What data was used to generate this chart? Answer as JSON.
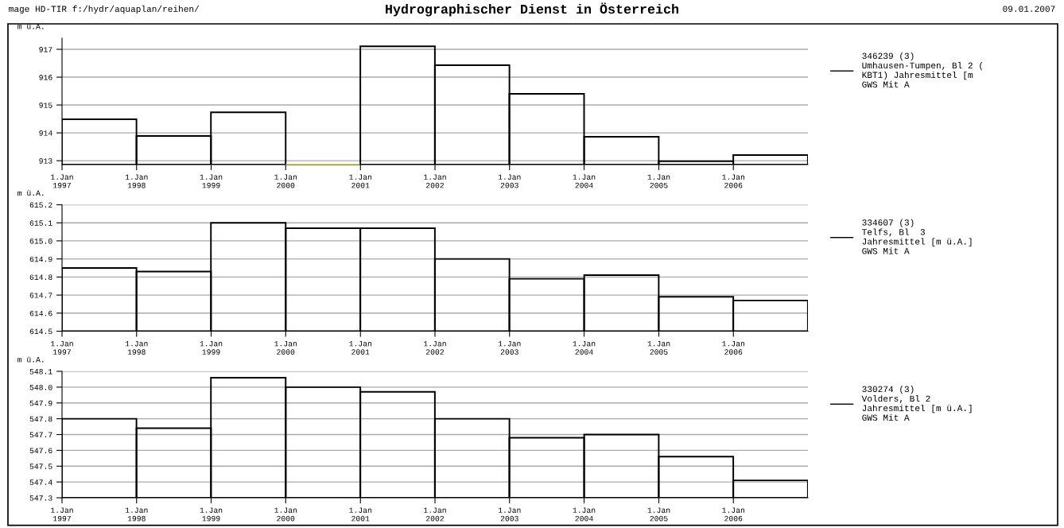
{
  "chart_data": [
    {
      "type": "bar",
      "title": "Hydrographischer Dienst in Österreich",
      "annotations": [
        "mage HD-TIR f:/hydr/aquaplan/reihen/",
        "09.01.2007"
      ],
      "ylabel": "m ü.A.",
      "x": [
        "1997-07-02",
        "1998-07-02",
        "1999-07-02",
        "2000-07-02",
        "2001-07-02",
        "2002-07-02",
        "2003-07-02",
        "2004-07-02",
        "2005-07-02",
        "2006-07-02"
      ],
      "xlim": [
        "1997",
        "2007"
      ],
      "xticks": [
        {
          "value": "1997",
          "label": "1.Jan\n1997"
        },
        {
          "value": "1998",
          "label": "1.Jan\n1998"
        },
        {
          "value": "1999",
          "label": "1.Jan\n1999"
        },
        {
          "value": "2000",
          "label": "1.Jan\n2000"
        },
        {
          "value": "2001",
          "label": "1.Jan\n2001"
        },
        {
          "value": "2002",
          "label": "1.Jan\n2002"
        },
        {
          "value": "2003",
          "label": "1.Jan\n2003"
        },
        {
          "value": "2004",
          "label": "1.Jan\n2004"
        },
        {
          "value": "2005",
          "label": "1.Jan\n2005"
        },
        {
          "value": "2006",
          "label": "1.Jan\n2006"
        }
      ],
      "ylim": [
        912.86,
        917.4
      ],
      "yticks": [
        913,
        914,
        915,
        916,
        917
      ],
      "grid": "y",
      "legend": "right",
      "series": [
        {
          "name": "346239 (3)\nUmhausen-Tumpen, Bl 2 (\nKBT1) Jahresmittel [m\nGWS Mit A",
          "color": "#000000",
          "colors": [
            "#000000",
            "#000000",
            "#000000",
            "#e0e000",
            "#000000",
            "#000000",
            "#000000",
            "#000000",
            "#000000",
            "#000000"
          ],
          "values": [
            914.49,
            913.89,
            914.74,
            912.86,
            917.11,
            916.43,
            915.4,
            913.86,
            912.98,
            913.2
          ]
        }
      ]
    },
    {
      "type": "bar",
      "ylabel": "m ü.A.",
      "x": [
        "1997-07-02",
        "1998-07-02",
        "1999-07-02",
        "2000-07-02",
        "2001-07-02",
        "2002-07-02",
        "2003-07-02",
        "2004-07-02",
        "2005-07-02",
        "2006-07-02"
      ],
      "xlim": [
        "1997",
        "2007"
      ],
      "xticks": [
        {
          "value": "1997",
          "label": "1.Jan\n1997"
        },
        {
          "value": "1998",
          "label": "1.Jan\n1998"
        },
        {
          "value": "1999",
          "label": "1.Jan\n1999"
        },
        {
          "value": "2000",
          "label": "1.Jan\n2000"
        },
        {
          "value": "2001",
          "label": "1.Jan\n2001"
        },
        {
          "value": "2002",
          "label": "1.Jan\n2002"
        },
        {
          "value": "2003",
          "label": "1.Jan\n2003"
        },
        {
          "value": "2004",
          "label": "1.Jan\n2004"
        },
        {
          "value": "2005",
          "label": "1.Jan\n2005"
        },
        {
          "value": "2006",
          "label": "1.Jan\n2006"
        }
      ],
      "ylim": [
        614.5,
        615.2
      ],
      "yticks": [
        614.5,
        614.6,
        614.7,
        614.8,
        614.9,
        {
          "value": 615.0,
          "label": "615.0"
        },
        615.1,
        615.2
      ],
      "grid": "y",
      "legend": "right",
      "series": [
        {
          "name": "334607 (3)\nTelfs, Bl  3\nJahresmittel [m ü.A.]\nGWS Mit A",
          "color": "#000000",
          "values": [
            614.85,
            614.83,
            615.1,
            615.07,
            615.07,
            614.9,
            614.79,
            614.81,
            614.69,
            614.67
          ]
        }
      ]
    },
    {
      "type": "bar",
      "ylabel": "m ü.A.",
      "x": [
        "1997-07-02",
        "1998-07-02",
        "1999-07-02",
        "2000-07-02",
        "2001-07-02",
        "2002-07-02",
        "2003-07-02",
        "2004-07-02",
        "2005-07-02",
        "2006-07-02"
      ],
      "xlim": [
        "1997",
        "2007"
      ],
      "xticks": [
        {
          "value": "1997",
          "label": "1.Jan\n1997"
        },
        {
          "value": "1998",
          "label": "1.Jan\n1998"
        },
        {
          "value": "1999",
          "label": "1.Jan\n1999"
        },
        {
          "value": "2000",
          "label": "1.Jan\n2000"
        },
        {
          "value": "2001",
          "label": "1.Jan\n2001"
        },
        {
          "value": "2002",
          "label": "1.Jan\n2002"
        },
        {
          "value": "2003",
          "label": "1.Jan\n2003"
        },
        {
          "value": "2004",
          "label": "1.Jan\n2004"
        },
        {
          "value": "2005",
          "label": "1.Jan\n2005"
        },
        {
          "value": "2006",
          "label": "1.Jan\n2006"
        }
      ],
      "ylim": [
        547.3,
        548.1
      ],
      "yticks": [
        547.3,
        547.4,
        547.5,
        547.6,
        547.7,
        547.8,
        547.9,
        {
          "value": 548.0,
          "label": "548.0"
        },
        548.1
      ],
      "grid": "y",
      "legend": "right",
      "series": [
        {
          "name": "330274 (3)\nVolders, Bl 2\nJahresmittel [m ü.A.]\nGWS Mit A",
          "color": "#000000",
          "values": [
            547.8,
            547.74,
            548.06,
            548.0,
            547.97,
            547.8,
            547.68,
            547.7,
            547.56,
            547.41
          ]
        }
      ]
    }
  ]
}
